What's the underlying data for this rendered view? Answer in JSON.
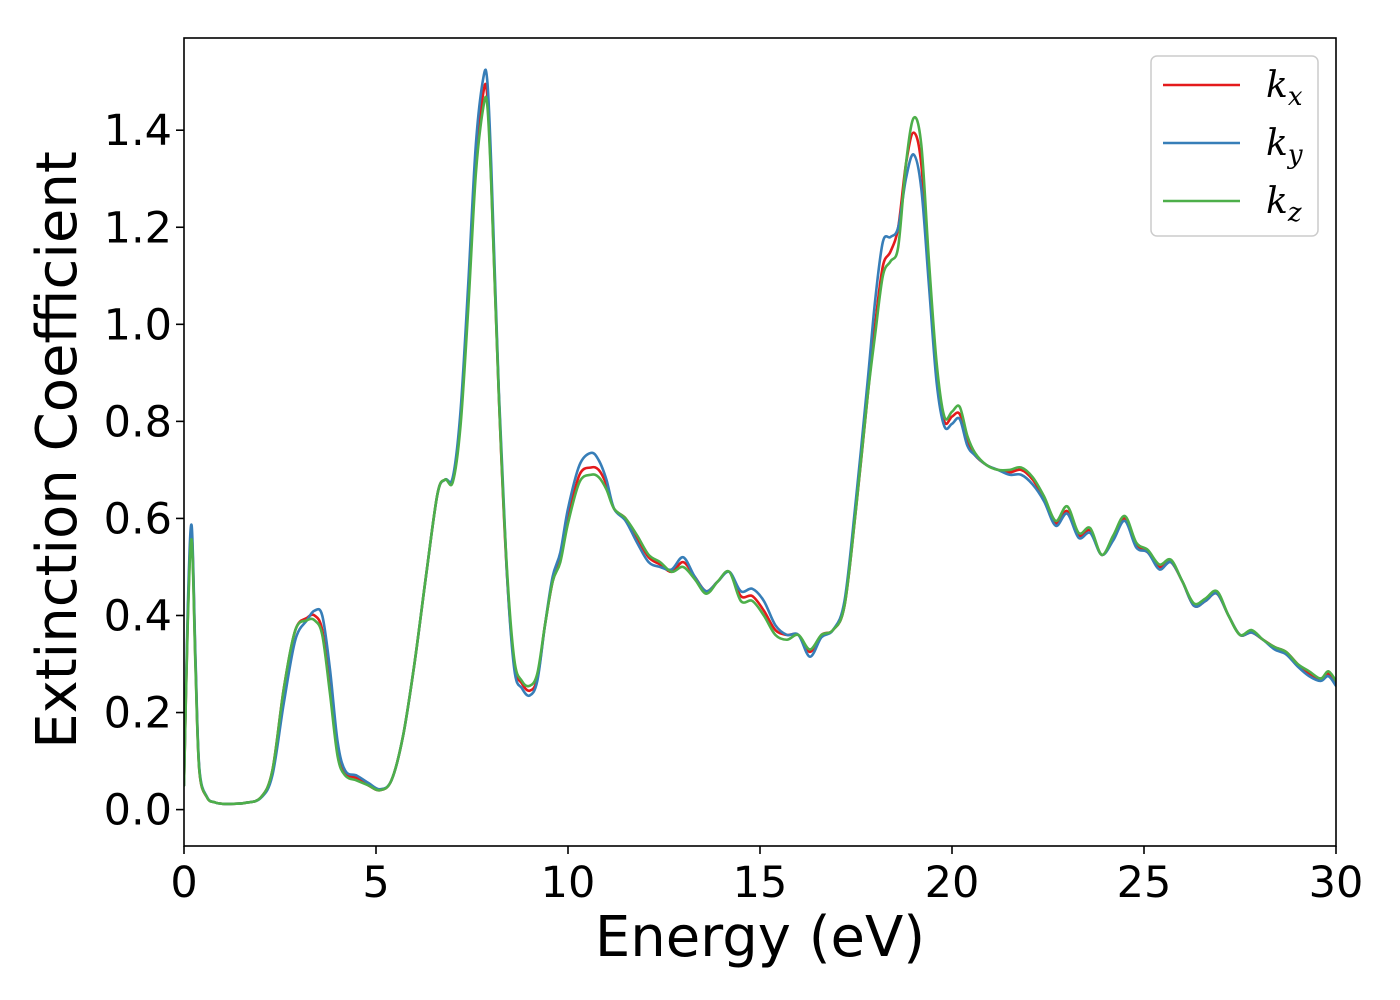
{
  "chart_data": {
    "type": "line",
    "title": "",
    "xlabel": "Energy (eV)",
    "ylabel": "Extinction Coefficient",
    "xlim": [
      0,
      30
    ],
    "ylim": [
      -0.075,
      1.59
    ],
    "xticks": [
      0,
      5,
      10,
      15,
      20,
      25,
      30
    ],
    "xtick_labels": [
      "0",
      "5",
      "10",
      "15",
      "20",
      "25",
      "30"
    ],
    "yticks": [
      0.0,
      0.2,
      0.4,
      0.6,
      0.8,
      1.0,
      1.2,
      1.4
    ],
    "ytick_labels": [
      "0.0",
      "0.2",
      "0.4",
      "0.6",
      "0.8",
      "1.0",
      "1.2",
      "1.4"
    ],
    "grid": false,
    "legend_position": "top-right",
    "series": [
      {
        "name": "k_x",
        "label_main": "k",
        "label_sub": "x",
        "color": "#e41a1c",
        "x": [
          0,
          0.1,
          0.2,
          0.3,
          0.4,
          0.6,
          0.8,
          1.0,
          1.3,
          1.6,
          2.0,
          2.3,
          2.6,
          2.9,
          3.2,
          3.4,
          3.6,
          3.8,
          4.0,
          4.2,
          4.5,
          4.8,
          5.1,
          5.4,
          5.7,
          6.0,
          6.3,
          6.6,
          6.8,
          7.0,
          7.2,
          7.4,
          7.6,
          7.8,
          7.9,
          8.0,
          8.2,
          8.4,
          8.6,
          8.8,
          9.0,
          9.2,
          9.4,
          9.6,
          9.8,
          10.0,
          10.3,
          10.6,
          10.8,
          11.0,
          11.2,
          11.5,
          11.8,
          12.1,
          12.4,
          12.7,
          13.0,
          13.3,
          13.6,
          13.9,
          14.2,
          14.5,
          14.8,
          15.1,
          15.4,
          15.7,
          16.0,
          16.3,
          16.6,
          16.9,
          17.2,
          17.5,
          17.8,
          18.0,
          18.2,
          18.4,
          18.6,
          18.8,
          19.0,
          19.2,
          19.4,
          19.6,
          19.8,
          20.0,
          20.2,
          20.4,
          20.6,
          20.9,
          21.2,
          21.5,
          21.8,
          22.1,
          22.4,
          22.7,
          23.0,
          23.3,
          23.6,
          23.9,
          24.2,
          24.5,
          24.8,
          25.1,
          25.4,
          25.7,
          26.0,
          26.3,
          26.6,
          26.9,
          27.2,
          27.5,
          27.8,
          28.1,
          28.4,
          28.7,
          29.0,
          29.3,
          29.6,
          29.8,
          30.0
        ],
        "y": [
          0.05,
          0.4,
          0.57,
          0.3,
          0.08,
          0.025,
          0.015,
          0.012,
          0.012,
          0.014,
          0.025,
          0.08,
          0.25,
          0.37,
          0.395,
          0.4,
          0.37,
          0.25,
          0.12,
          0.075,
          0.065,
          0.05,
          0.04,
          0.06,
          0.15,
          0.3,
          0.48,
          0.65,
          0.68,
          0.68,
          0.8,
          1.05,
          1.33,
          1.48,
          1.47,
          1.3,
          0.85,
          0.5,
          0.3,
          0.26,
          0.245,
          0.27,
          0.38,
          0.47,
          0.52,
          0.6,
          0.69,
          0.705,
          0.7,
          0.67,
          0.62,
          0.6,
          0.56,
          0.52,
          0.505,
          0.49,
          0.51,
          0.48,
          0.45,
          0.47,
          0.49,
          0.44,
          0.44,
          0.41,
          0.37,
          0.36,
          0.36,
          0.325,
          0.36,
          0.37,
          0.42,
          0.62,
          0.85,
          1.0,
          1.12,
          1.15,
          1.2,
          1.33,
          1.395,
          1.33,
          1.1,
          0.9,
          0.8,
          0.81,
          0.815,
          0.76,
          0.73,
          0.71,
          0.7,
          0.695,
          0.7,
          0.68,
          0.64,
          0.59,
          0.615,
          0.565,
          0.575,
          0.525,
          0.56,
          0.6,
          0.545,
          0.53,
          0.5,
          0.51,
          0.47,
          0.42,
          0.43,
          0.445,
          0.4,
          0.36,
          0.365,
          0.35,
          0.335,
          0.325,
          0.3,
          0.28,
          0.27,
          0.28,
          0.26
        ]
      },
      {
        "name": "k_y",
        "label_main": "k",
        "label_sub": "y",
        "color": "#377eb8",
        "x": [
          0,
          0.1,
          0.2,
          0.3,
          0.4,
          0.6,
          0.8,
          1.0,
          1.3,
          1.6,
          2.0,
          2.3,
          2.6,
          2.9,
          3.2,
          3.4,
          3.6,
          3.8,
          4.0,
          4.2,
          4.5,
          4.8,
          5.1,
          5.4,
          5.7,
          6.0,
          6.3,
          6.6,
          6.8,
          7.0,
          7.2,
          7.4,
          7.6,
          7.8,
          7.9,
          8.0,
          8.2,
          8.4,
          8.6,
          8.8,
          9.0,
          9.2,
          9.4,
          9.6,
          9.8,
          10.0,
          10.3,
          10.6,
          10.8,
          11.0,
          11.2,
          11.5,
          11.8,
          12.1,
          12.4,
          12.7,
          13.0,
          13.3,
          13.6,
          13.9,
          14.2,
          14.5,
          14.8,
          15.1,
          15.4,
          15.7,
          16.0,
          16.3,
          16.6,
          16.9,
          17.2,
          17.5,
          17.8,
          18.0,
          18.2,
          18.4,
          18.6,
          18.8,
          19.0,
          19.2,
          19.4,
          19.6,
          19.8,
          20.0,
          20.2,
          20.4,
          20.6,
          20.9,
          21.2,
          21.5,
          21.8,
          22.1,
          22.4,
          22.7,
          23.0,
          23.3,
          23.6,
          23.9,
          24.2,
          24.5,
          24.8,
          25.1,
          25.4,
          25.7,
          26.0,
          26.3,
          26.6,
          26.9,
          27.2,
          27.5,
          27.8,
          28.1,
          28.4,
          28.7,
          29.0,
          29.3,
          29.6,
          29.8,
          30.0
        ],
        "y": [
          0.05,
          0.42,
          0.585,
          0.31,
          0.085,
          0.026,
          0.015,
          0.012,
          0.012,
          0.014,
          0.024,
          0.07,
          0.22,
          0.35,
          0.39,
          0.41,
          0.4,
          0.29,
          0.14,
          0.08,
          0.07,
          0.055,
          0.042,
          0.06,
          0.15,
          0.3,
          0.48,
          0.65,
          0.68,
          0.685,
          0.82,
          1.08,
          1.37,
          1.51,
          1.5,
          1.33,
          0.86,
          0.5,
          0.29,
          0.25,
          0.235,
          0.265,
          0.38,
          0.48,
          0.53,
          0.62,
          0.71,
          0.735,
          0.72,
          0.68,
          0.62,
          0.595,
          0.55,
          0.51,
          0.5,
          0.495,
          0.52,
          0.48,
          0.45,
          0.47,
          0.49,
          0.45,
          0.455,
          0.43,
          0.38,
          0.36,
          0.36,
          0.315,
          0.355,
          0.37,
          0.43,
          0.64,
          0.88,
          1.05,
          1.17,
          1.18,
          1.2,
          1.3,
          1.35,
          1.28,
          1.08,
          0.88,
          0.79,
          0.795,
          0.805,
          0.75,
          0.73,
          0.71,
          0.7,
          0.69,
          0.69,
          0.67,
          0.635,
          0.585,
          0.61,
          0.56,
          0.57,
          0.525,
          0.555,
          0.595,
          0.54,
          0.53,
          0.495,
          0.51,
          0.47,
          0.42,
          0.43,
          0.445,
          0.4,
          0.36,
          0.365,
          0.35,
          0.33,
          0.32,
          0.295,
          0.275,
          0.265,
          0.275,
          0.255
        ]
      },
      {
        "name": "k_z",
        "label_main": "k",
        "label_sub": "z",
        "color": "#4daf4a",
        "x": [
          0,
          0.1,
          0.2,
          0.3,
          0.4,
          0.6,
          0.8,
          1.0,
          1.3,
          1.6,
          2.0,
          2.3,
          2.6,
          2.9,
          3.2,
          3.4,
          3.6,
          3.8,
          4.0,
          4.2,
          4.5,
          4.8,
          5.1,
          5.4,
          5.7,
          6.0,
          6.3,
          6.6,
          6.8,
          7.0,
          7.2,
          7.4,
          7.6,
          7.8,
          7.9,
          8.0,
          8.2,
          8.4,
          8.6,
          8.8,
          9.0,
          9.2,
          9.4,
          9.6,
          9.8,
          10.0,
          10.3,
          10.6,
          10.8,
          11.0,
          11.2,
          11.5,
          11.8,
          12.1,
          12.4,
          12.7,
          13.0,
          13.3,
          13.6,
          13.9,
          14.2,
          14.5,
          14.8,
          15.1,
          15.4,
          15.7,
          16.0,
          16.3,
          16.6,
          16.9,
          17.2,
          17.5,
          17.8,
          18.0,
          18.2,
          18.4,
          18.6,
          18.8,
          19.0,
          19.2,
          19.4,
          19.6,
          19.8,
          20.0,
          20.2,
          20.4,
          20.6,
          20.9,
          21.2,
          21.5,
          21.8,
          22.1,
          22.4,
          22.7,
          23.0,
          23.3,
          23.6,
          23.9,
          24.2,
          24.5,
          24.8,
          25.1,
          25.4,
          25.7,
          26.0,
          26.3,
          26.6,
          26.9,
          27.2,
          27.5,
          27.8,
          28.1,
          28.4,
          28.7,
          29.0,
          29.3,
          29.6,
          29.8,
          30.0
        ],
        "y": [
          0.05,
          0.39,
          0.555,
          0.29,
          0.08,
          0.025,
          0.015,
          0.012,
          0.012,
          0.014,
          0.025,
          0.08,
          0.25,
          0.37,
          0.39,
          0.39,
          0.36,
          0.24,
          0.11,
          0.07,
          0.06,
          0.05,
          0.04,
          0.06,
          0.15,
          0.3,
          0.48,
          0.65,
          0.68,
          0.675,
          0.79,
          1.03,
          1.31,
          1.45,
          1.45,
          1.29,
          0.85,
          0.51,
          0.31,
          0.265,
          0.255,
          0.28,
          0.38,
          0.47,
          0.51,
          0.59,
          0.675,
          0.69,
          0.685,
          0.66,
          0.62,
          0.6,
          0.565,
          0.525,
          0.51,
          0.49,
          0.5,
          0.475,
          0.445,
          0.47,
          0.49,
          0.43,
          0.43,
          0.4,
          0.36,
          0.35,
          0.36,
          0.33,
          0.36,
          0.37,
          0.42,
          0.62,
          0.85,
          0.98,
          1.1,
          1.13,
          1.16,
          1.33,
          1.425,
          1.37,
          1.13,
          0.92,
          0.81,
          0.82,
          0.83,
          0.77,
          0.735,
          0.71,
          0.7,
          0.7,
          0.705,
          0.685,
          0.645,
          0.595,
          0.625,
          0.57,
          0.58,
          0.525,
          0.565,
          0.605,
          0.55,
          0.535,
          0.505,
          0.515,
          0.47,
          0.425,
          0.435,
          0.45,
          0.4,
          0.36,
          0.37,
          0.35,
          0.335,
          0.325,
          0.3,
          0.285,
          0.27,
          0.285,
          0.265
        ]
      }
    ]
  }
}
